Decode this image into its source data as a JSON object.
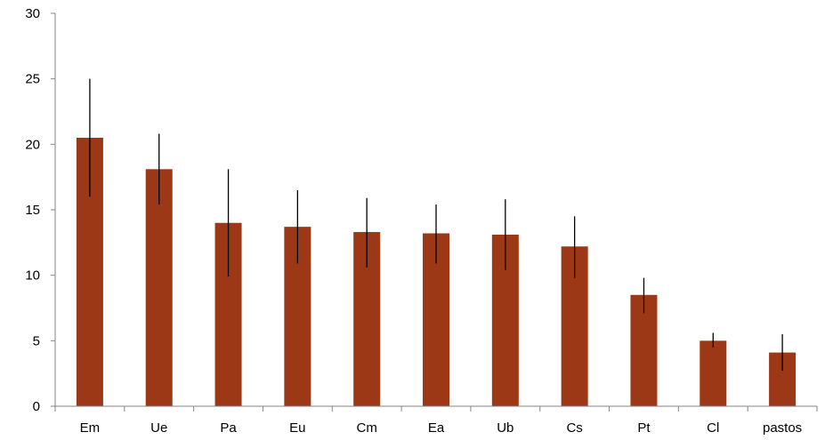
{
  "chart_data": {
    "type": "bar",
    "title": "",
    "xlabel": "",
    "ylabel": "",
    "categories": [
      "Em",
      "Ue",
      "Pa",
      "Eu",
      "Cm",
      "Ea",
      "Ub",
      "Cs",
      "Pt",
      "Cl",
      "pastos"
    ],
    "values": [
      20.5,
      18.1,
      14.0,
      13.7,
      13.3,
      13.2,
      13.1,
      12.2,
      8.5,
      5.0,
      4.1
    ],
    "error_low": [
      16.0,
      15.4,
      9.9,
      10.9,
      10.6,
      10.9,
      10.4,
      9.8,
      7.1,
      4.5,
      2.7
    ],
    "error_high": [
      25.0,
      20.8,
      18.1,
      16.5,
      15.9,
      15.4,
      15.8,
      14.5,
      9.8,
      5.6,
      5.5
    ],
    "ylim": [
      0,
      30
    ],
    "yticks": [
      0,
      5,
      10,
      15,
      20,
      25,
      30
    ],
    "ytick_labels": [
      "0",
      "5",
      "10",
      "15",
      "20",
      "25",
      "30"
    ],
    "bar_color": "#9c3816",
    "error_bar_color": "#000000",
    "grid": false,
    "legend": "none"
  }
}
